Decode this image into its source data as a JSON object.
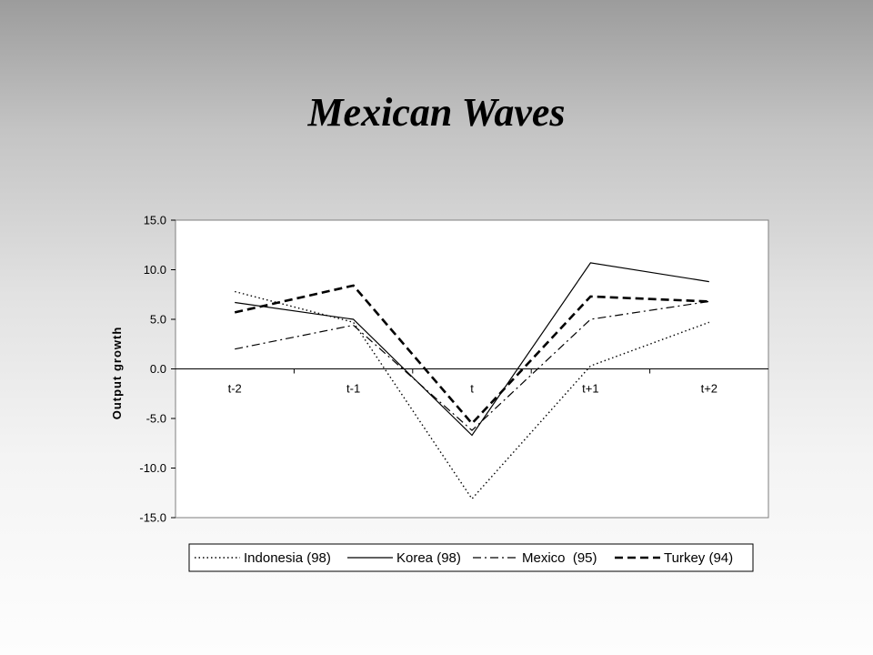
{
  "title": "Mexican Waves",
  "chart_data": {
    "type": "line",
    "ylabel": "Output growth",
    "xlabel": "",
    "categories": [
      "t-2",
      "t-1",
      "t",
      "t+1",
      "t+2"
    ],
    "yticks": [
      "15.0",
      "10.0",
      "5.0",
      "0.0",
      "-5.0",
      "-10.0",
      "-15.0"
    ],
    "ylim": [
      -15,
      15
    ],
    "grid": false,
    "legend_position": "bottom",
    "series": [
      {
        "name": "Indonesia (98)",
        "style": "dotted",
        "values": [
          7.8,
          4.7,
          -13.1,
          0.3,
          4.7
        ]
      },
      {
        "name": "Korea (98)",
        "style": "solid",
        "values": [
          6.7,
          5.0,
          -6.7,
          10.7,
          8.8
        ]
      },
      {
        "name": "Mexico  (95)",
        "style": "dashdot",
        "values": [
          2.0,
          4.4,
          -6.2,
          5.0,
          6.8
        ]
      },
      {
        "name": "Turkey (94)",
        "style": "dashed",
        "values": [
          5.7,
          8.4,
          -5.5,
          7.3,
          6.8
        ]
      }
    ]
  },
  "colors": {
    "line": "#000000",
    "plot_background": "#ffffff",
    "axis": "#7f7f7f"
  }
}
